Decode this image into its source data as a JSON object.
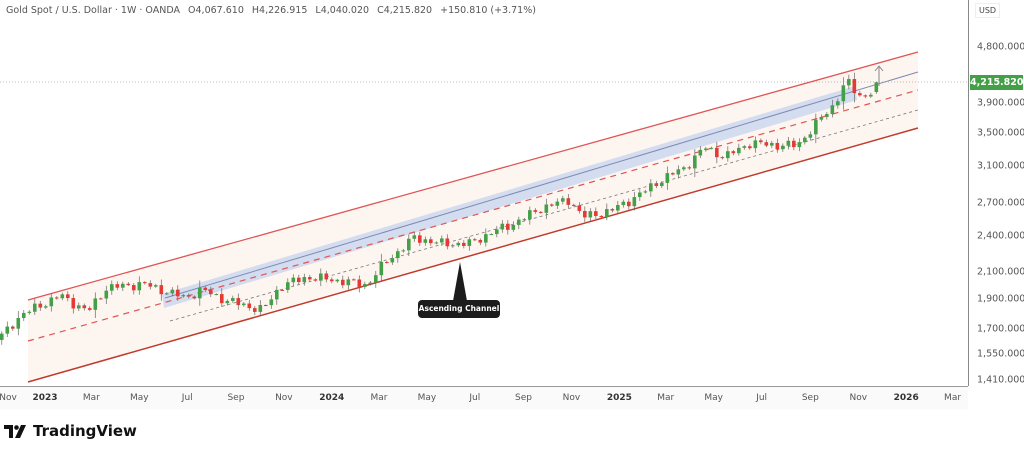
{
  "header": {
    "symbol": "Gold Spot / U.S. Dollar · 1W · OANDA",
    "open": "O4,067.610",
    "high": "H4,226.915",
    "low": "L4,040.020",
    "close": "C4,215.820",
    "change": "+150.810 (+3.71%)"
  },
  "currency": "USD",
  "current_price_label": "4,215.820",
  "annotation": "Ascending Channel",
  "brand": "TradingView",
  "colors": {
    "up": "#43a047",
    "down": "#e53935",
    "channel": "#e57373",
    "band": "#c5d3f0"
  },
  "chart_data": {
    "type": "candlestick",
    "title": "Gold Spot / U.S. Dollar · 1W · OANDA",
    "scale": "log",
    "ylim": [
      1390,
      5000
    ],
    "yticks": [
      4800,
      3900,
      3500,
      3100,
      2700,
      2400,
      2100,
      1900,
      1700,
      1550,
      1410
    ],
    "ytick_labels": [
      "4,800.000",
      "3,900.000",
      "3,500.000",
      "3,100.000",
      "2,700.000",
      "2,400.000",
      "2,100.000",
      "1,900.000",
      "1,700.000",
      "1,550.000",
      "1,410.000"
    ],
    "xticks": [
      {
        "label": "Nov",
        "date": "2022-11-01"
      },
      {
        "label": "2023",
        "date": "2023-01-01",
        "year": true
      },
      {
        "label": "Mar",
        "date": "2023-03-01"
      },
      {
        "label": "May",
        "date": "2023-05-01"
      },
      {
        "label": "Jul",
        "date": "2023-07-01"
      },
      {
        "label": "Sep",
        "date": "2023-09-01"
      },
      {
        "label": "Nov",
        "date": "2023-11-01"
      },
      {
        "label": "2024",
        "date": "2024-01-01",
        "year": true
      },
      {
        "label": "Mar",
        "date": "2024-03-01"
      },
      {
        "label": "May",
        "date": "2024-05-01"
      },
      {
        "label": "Jul",
        "date": "2024-07-01"
      },
      {
        "label": "Sep",
        "date": "2024-09-01"
      },
      {
        "label": "Nov",
        "date": "2024-11-01"
      },
      {
        "label": "2025",
        "date": "2025-01-01",
        "year": true
      },
      {
        "label": "Mar",
        "date": "2025-03-01"
      },
      {
        "label": "May",
        "date": "2025-05-01"
      },
      {
        "label": "Jul",
        "date": "2025-07-01"
      },
      {
        "label": "Sep",
        "date": "2025-09-01"
      },
      {
        "label": "Nov",
        "date": "2025-11-01"
      },
      {
        "label": "2026",
        "date": "2026-01-01",
        "year": true
      },
      {
        "label": "Mar",
        "date": "2026-03-01"
      }
    ],
    "close_anchors": [
      [
        "2022-11-07",
        1660
      ],
      [
        "2022-12-01",
        1790
      ],
      [
        "2023-01-20",
        1925
      ],
      [
        "2023-02-25",
        1815
      ],
      [
        "2023-03-20",
        1980
      ],
      [
        "2023-04-15",
        1995
      ],
      [
        "2023-05-05",
        2010
      ],
      [
        "2023-06-01",
        1960
      ],
      [
        "2023-06-28",
        1910
      ],
      [
        "2023-07-20",
        1965
      ],
      [
        "2023-08-20",
        1890
      ],
      [
        "2023-10-05",
        1825
      ],
      [
        "2023-10-28",
        1995
      ],
      [
        "2023-12-01",
        2060
      ],
      [
        "2024-01-15",
        2030
      ],
      [
        "2024-02-14",
        2000
      ],
      [
        "2024-03-10",
        2180
      ],
      [
        "2024-04-15",
        2380
      ],
      [
        "2024-05-20",
        2330
      ],
      [
        "2024-06-25",
        2330
      ],
      [
        "2024-07-20",
        2420
      ],
      [
        "2024-08-20",
        2510
      ],
      [
        "2024-09-25",
        2660
      ],
      [
        "2024-10-30",
        2740
      ],
      [
        "2024-11-15",
        2570
      ],
      [
        "2024-12-20",
        2625
      ],
      [
        "2025-01-25",
        2780
      ],
      [
        "2025-02-20",
        2930
      ],
      [
        "2025-03-25",
        3080
      ],
      [
        "2025-04-20",
        3320
      ],
      [
        "2025-05-15",
        3200
      ],
      [
        "2025-06-15",
        3370
      ],
      [
        "2025-07-15",
        3350
      ],
      [
        "2025-08-15",
        3340
      ],
      [
        "2025-09-10",
        3640
      ],
      [
        "2025-10-01",
        3880
      ],
      [
        "2025-10-17",
        4250
      ],
      [
        "2025-10-25",
        4110
      ],
      [
        "2025-11-05",
        3990
      ],
      [
        "2025-11-17",
        4067.61
      ],
      [
        "2025-11-24",
        4215.82
      ]
    ],
    "last_candle": {
      "open": 4067.61,
      "high": 4226.915,
      "low": 4040.02,
      "close": 4215.82
    }
  }
}
